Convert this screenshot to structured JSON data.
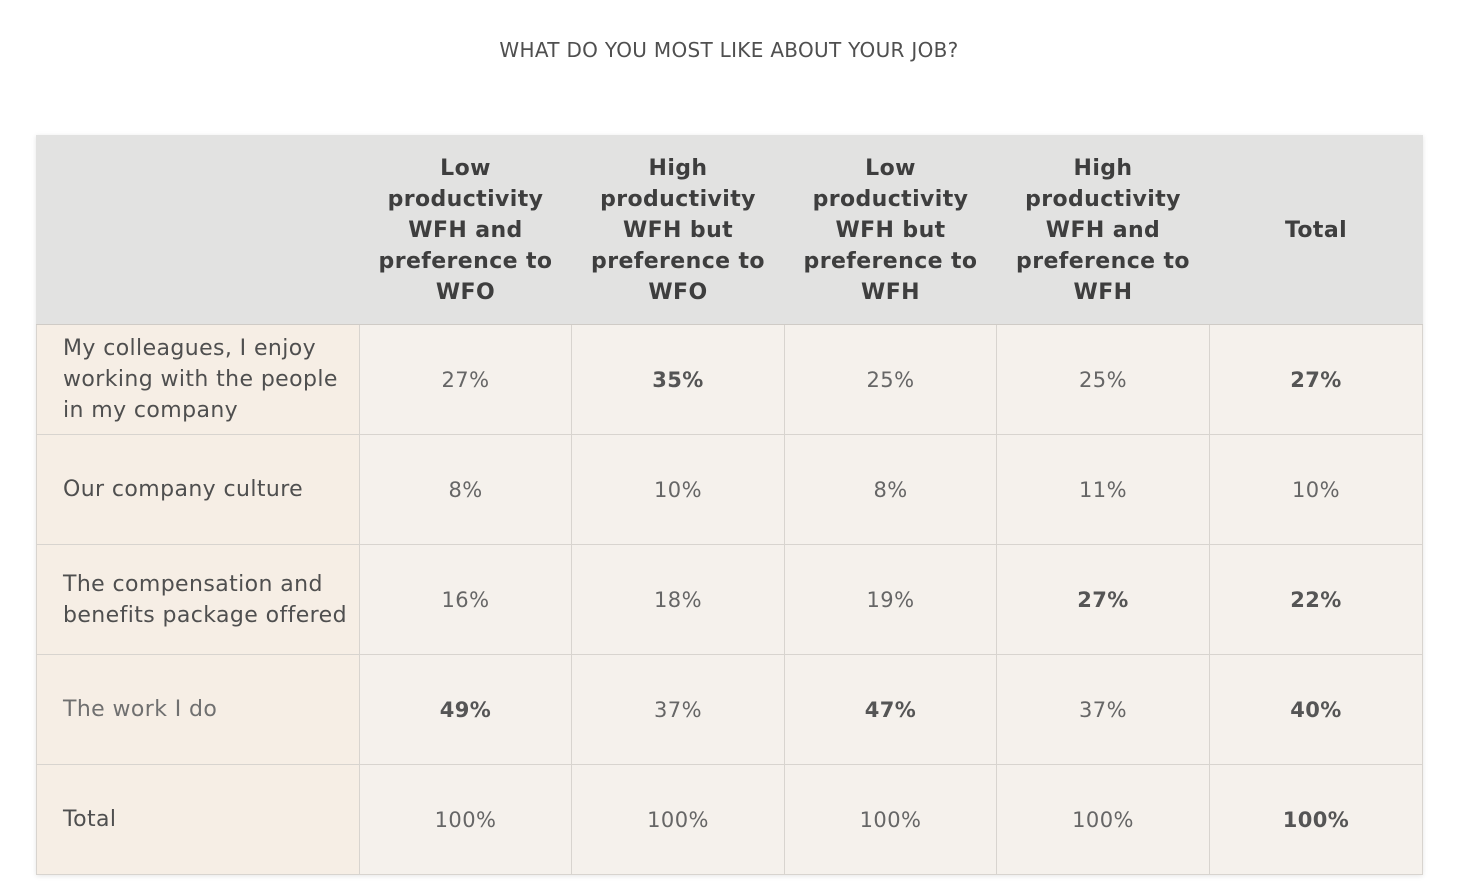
{
  "title": "WHAT DO YOU MOST LIKE ABOUT YOUR JOB?",
  "chart_data": {
    "type": "table",
    "title": "WHAT DO YOU MOST LIKE ABOUT YOUR JOB?",
    "columns": [
      "",
      "Low productivity WFH and preference to WFO",
      "High productivity WFH but preference to WFO",
      "Low productivity WFH but preference to WFH",
      "High productivity WFH and preference to WFH",
      "Total"
    ],
    "rows": [
      {
        "label": "My colleagues, I enjoy working with the people in my company",
        "values": [
          "27%",
          "35%",
          "25%",
          "25%",
          "27%"
        ],
        "bold": [
          false,
          true,
          false,
          false,
          true
        ]
      },
      {
        "label": "Our company culture",
        "values": [
          "8%",
          "10%",
          "8%",
          "11%",
          "10%"
        ],
        "bold": [
          false,
          false,
          false,
          false,
          false
        ]
      },
      {
        "label": "The compensation and benefits package offered",
        "values": [
          "16%",
          "18%",
          "19%",
          "27%",
          "22%"
        ],
        "bold": [
          false,
          false,
          false,
          true,
          true
        ]
      },
      {
        "label": "The work I do",
        "values": [
          "49%",
          "37%",
          "47%",
          "37%",
          "40%"
        ],
        "bold": [
          true,
          false,
          true,
          false,
          true
        ]
      },
      {
        "label": "Total",
        "values": [
          "100%",
          "100%",
          "100%",
          "100%",
          "100%"
        ],
        "bold": [
          false,
          false,
          false,
          false,
          true
        ]
      }
    ],
    "colors": {
      "header_bg": "#e2e2e1",
      "cell_bg": "#f5f1ec",
      "label_bg": "#f6eee5",
      "border": "#d8d4cf",
      "text": "#666666"
    }
  }
}
